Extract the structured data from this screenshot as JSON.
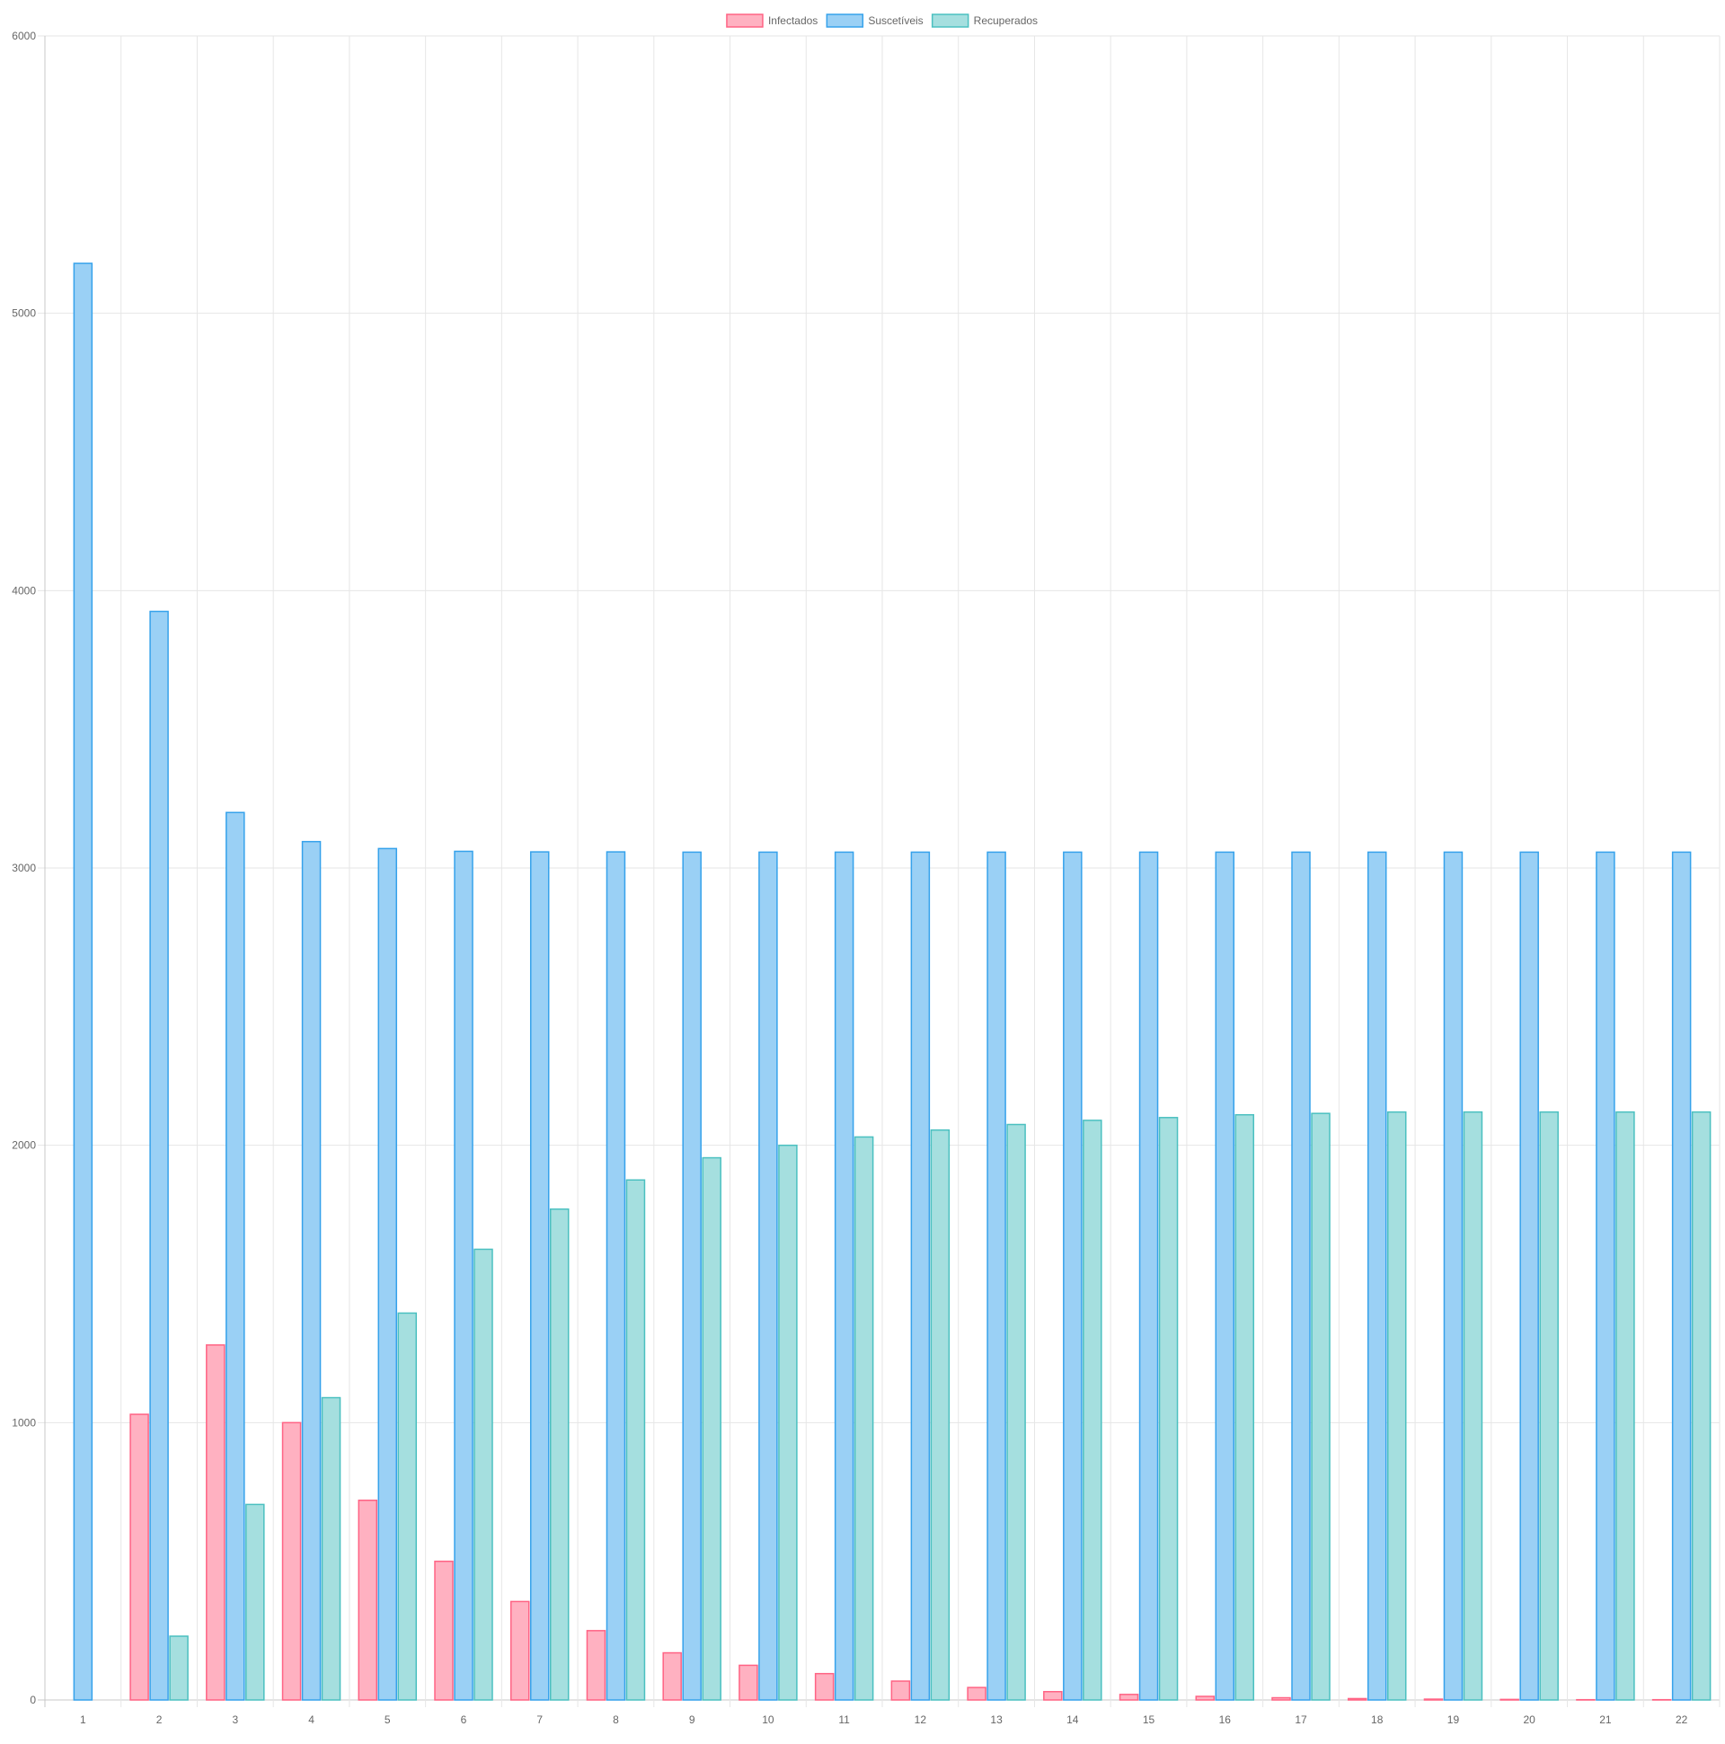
{
  "chart_data": {
    "type": "bar",
    "title": "",
    "xlabel": "",
    "ylabel": "",
    "categories": [
      "1",
      "2",
      "3",
      "4",
      "5",
      "6",
      "7",
      "8",
      "9",
      "10",
      "11",
      "12",
      "13",
      "14",
      "15",
      "16",
      "17",
      "18",
      "19",
      "20",
      "21",
      "22"
    ],
    "ylim": [
      0,
      6000
    ],
    "yticks": [
      "0",
      "1000",
      "2000",
      "3000",
      "4000",
      "5000",
      "6000"
    ],
    "grid": true,
    "legend_position": "top-center",
    "series": [
      {
        "name": "Infectados",
        "fill": "#ffb1c1",
        "stroke": "#ff6384",
        "values": [
          0,
          1030,
          1280,
          1000,
          720,
          500,
          355,
          250,
          170,
          125,
          95,
          68,
          45,
          30,
          20,
          13,
          8,
          5,
          3,
          2,
          1,
          1
        ]
      },
      {
        "name": "Suscetíveis",
        "fill": "#9ad0f5",
        "stroke": "#36a2eb",
        "values": [
          5180,
          3925,
          3200,
          3095,
          3070,
          3060,
          3058,
          3058,
          3057,
          3057,
          3057,
          3057,
          3057,
          3057,
          3057,
          3057,
          3057,
          3057,
          3057,
          3057,
          3057,
          3057
        ]
      },
      {
        "name": "Recuperados",
        "fill": "#a5dfdf",
        "stroke": "#4bc0c0",
        "values": [
          0,
          230,
          705,
          1090,
          1395,
          1625,
          1770,
          1875,
          1955,
          2000,
          2030,
          2055,
          2075,
          2090,
          2100,
          2110,
          2115,
          2120,
          2120,
          2120,
          2120,
          2120
        ]
      }
    ]
  }
}
